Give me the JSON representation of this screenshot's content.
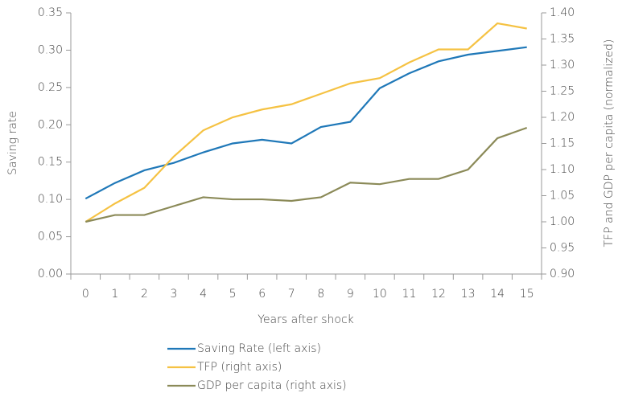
{
  "chart_data": {
    "type": "line",
    "xlabel": "Years after shock",
    "ylabel": "Saving rate",
    "y2label": "TFP and GDP per capita (normalized)",
    "categories": [
      "0",
      "1",
      "2",
      "3",
      "4",
      "5",
      "6",
      "7",
      "8",
      "9",
      "10",
      "11",
      "12",
      "13",
      "14",
      "15"
    ],
    "series": [
      {
        "name": "Saving Rate (left axis)",
        "color": "#1f78b8",
        "axis": "y",
        "values": [
          0.101,
          0.122,
          0.139,
          0.149,
          0.163,
          0.175,
          0.18,
          0.175,
          0.197,
          0.204,
          0.249,
          0.269,
          0.285,
          0.294,
          0.299,
          0.304
        ]
      },
      {
        "name": "TFP (right axis)",
        "color": "#f5c243",
        "axis": "y2",
        "values": [
          1.0,
          1.035,
          1.065,
          1.125,
          1.175,
          1.2,
          1.215,
          1.225,
          1.245,
          1.265,
          1.275,
          1.305,
          1.33,
          1.33,
          1.38,
          1.37
        ]
      },
      {
        "name": "GDP per capita (right axis)",
        "color": "#8b8a58",
        "axis": "y2",
        "values": [
          1.0,
          1.013,
          1.013,
          1.03,
          1.047,
          1.043,
          1.043,
          1.04,
          1.047,
          1.075,
          1.072,
          1.082,
          1.082,
          1.1,
          1.16,
          1.18
        ]
      }
    ],
    "ylim": [
      0,
      0.35
    ],
    "yticks": [
      {
        "value": 0,
        "label": "0.00"
      },
      {
        "value": 0.05,
        "label": "0.05"
      },
      {
        "value": 0.1,
        "label": "0.10"
      },
      {
        "value": 0.15,
        "label": "0.15"
      },
      {
        "value": 0.2,
        "label": "0.20"
      },
      {
        "value": 0.25,
        "label": "0.25"
      },
      {
        "value": 0.3,
        "label": "0.30"
      },
      {
        "value": 0.35,
        "label": "0.35"
      }
    ],
    "y2lim": [
      0.9,
      1.4
    ],
    "y2ticks": [
      {
        "value": 0.9,
        "label": "0.90"
      },
      {
        "value": 0.95,
        "label": "0.95"
      },
      {
        "value": 1.0,
        "label": "1.00"
      },
      {
        "value": 1.05,
        "label": "1.05"
      },
      {
        "value": 1.1,
        "label": "1.10"
      },
      {
        "value": 1.15,
        "label": "1.15"
      },
      {
        "value": 1.2,
        "label": "1.20"
      },
      {
        "value": 1.25,
        "label": "1.25"
      },
      {
        "value": 1.3,
        "label": "1.30"
      },
      {
        "value": 1.35,
        "label": "1.35"
      },
      {
        "value": 1.4,
        "label": "1.40"
      }
    ],
    "grid": false
  }
}
